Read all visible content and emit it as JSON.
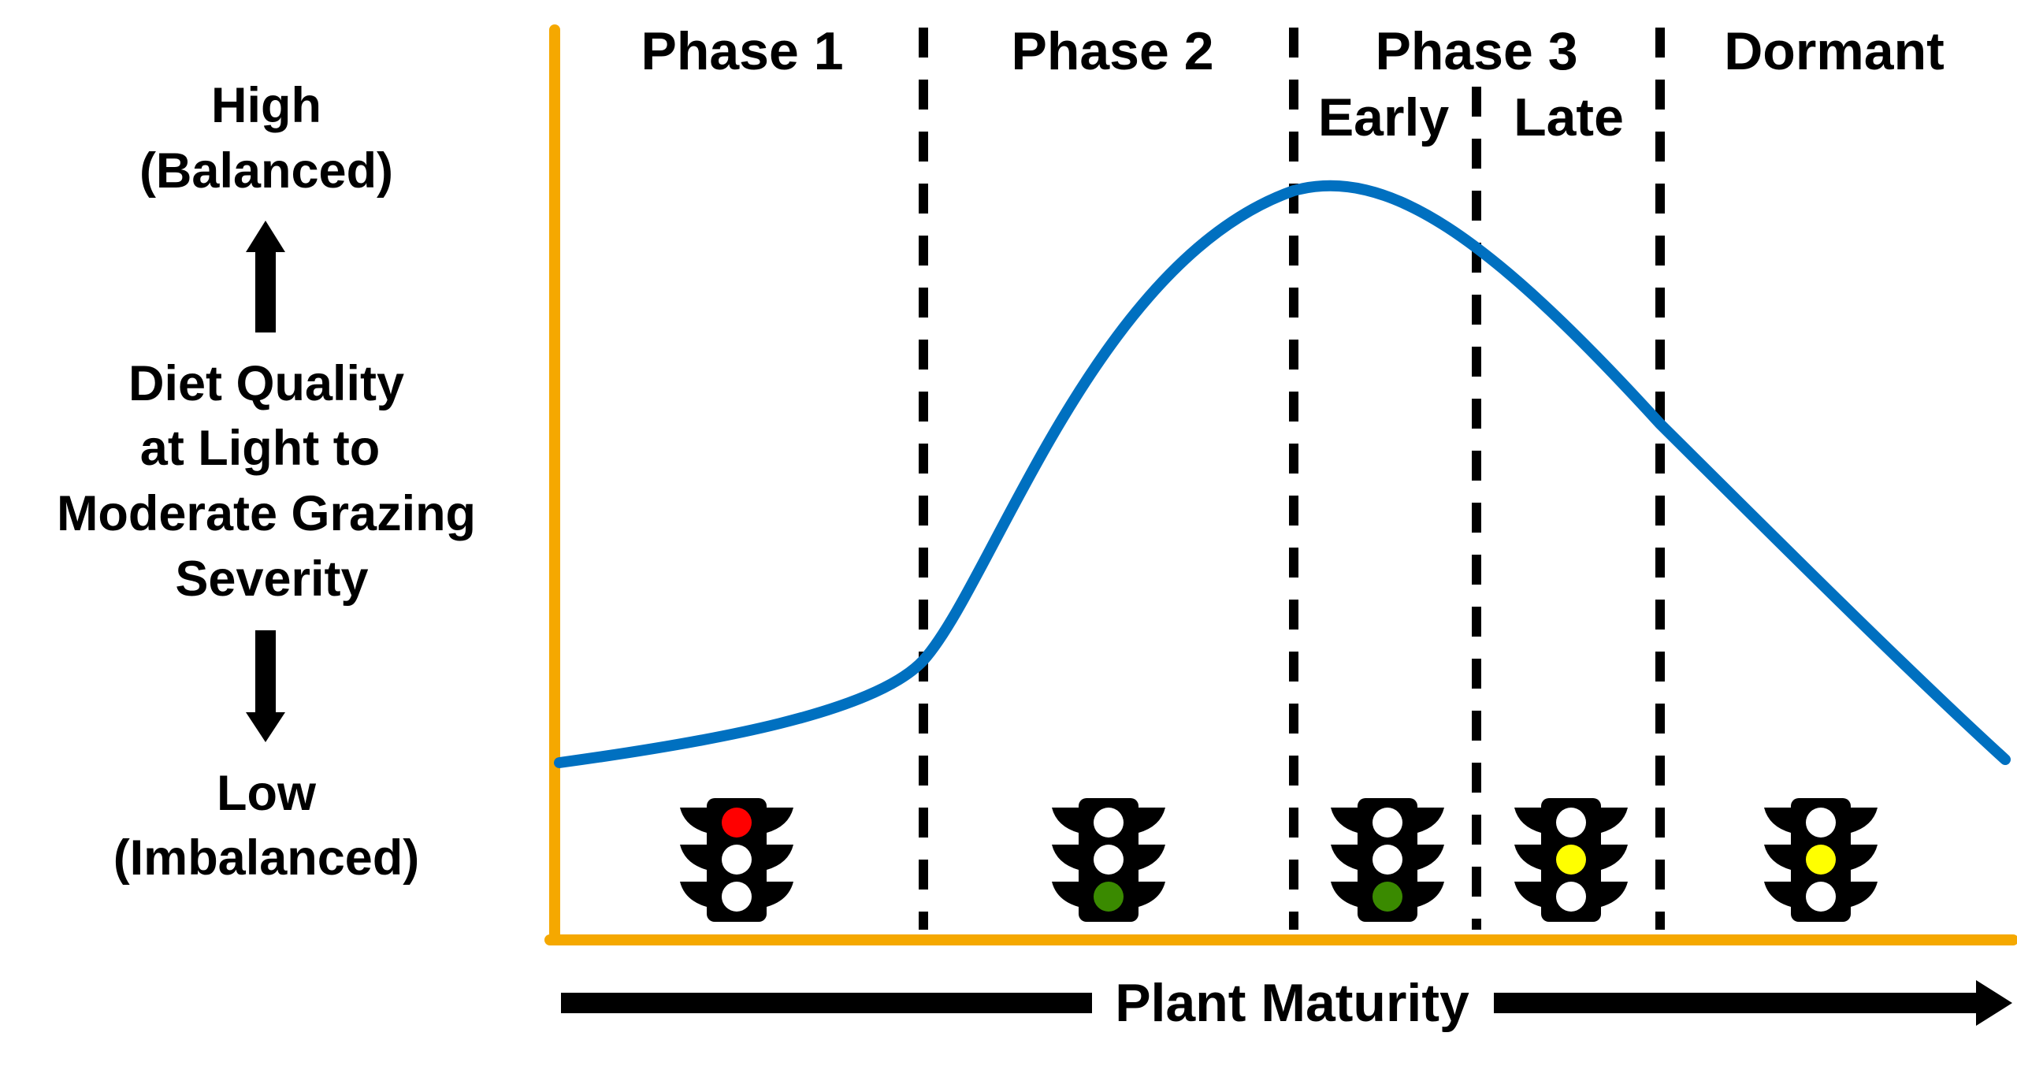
{
  "y_axis": {
    "high_label": "High",
    "high_sub": "(Balanced)",
    "title_lines": [
      "Diet Quality",
      "at Light to",
      "Moderate Grazing",
      "Severity"
    ],
    "low_label": "Low",
    "low_sub": "(Imbalanced)"
  },
  "x_axis": {
    "label": "Plant Maturity"
  },
  "phases": [
    {
      "label": "Phase 1"
    },
    {
      "label": "Phase 2"
    },
    {
      "label": "Phase 3",
      "sublabels": [
        "Early",
        "Late"
      ]
    },
    {
      "label": "Dormant"
    }
  ],
  "traffic_lights": [
    {
      "stage": "Phase 1",
      "lit": "red"
    },
    {
      "stage": "Phase 2",
      "lit": "green"
    },
    {
      "stage": "Phase 3 Early",
      "lit": "green"
    },
    {
      "stage": "Phase 3 Late",
      "lit": "yellow"
    },
    {
      "stage": "Dormant",
      "lit": "yellow"
    }
  ],
  "colors": {
    "curve": "#0070C0",
    "axis": "#F5A800",
    "red": "#FF0000",
    "green": "#3A8A00",
    "yellow": "#FFFF00",
    "off": "#FFFFFF",
    "housing": "#000000"
  }
}
